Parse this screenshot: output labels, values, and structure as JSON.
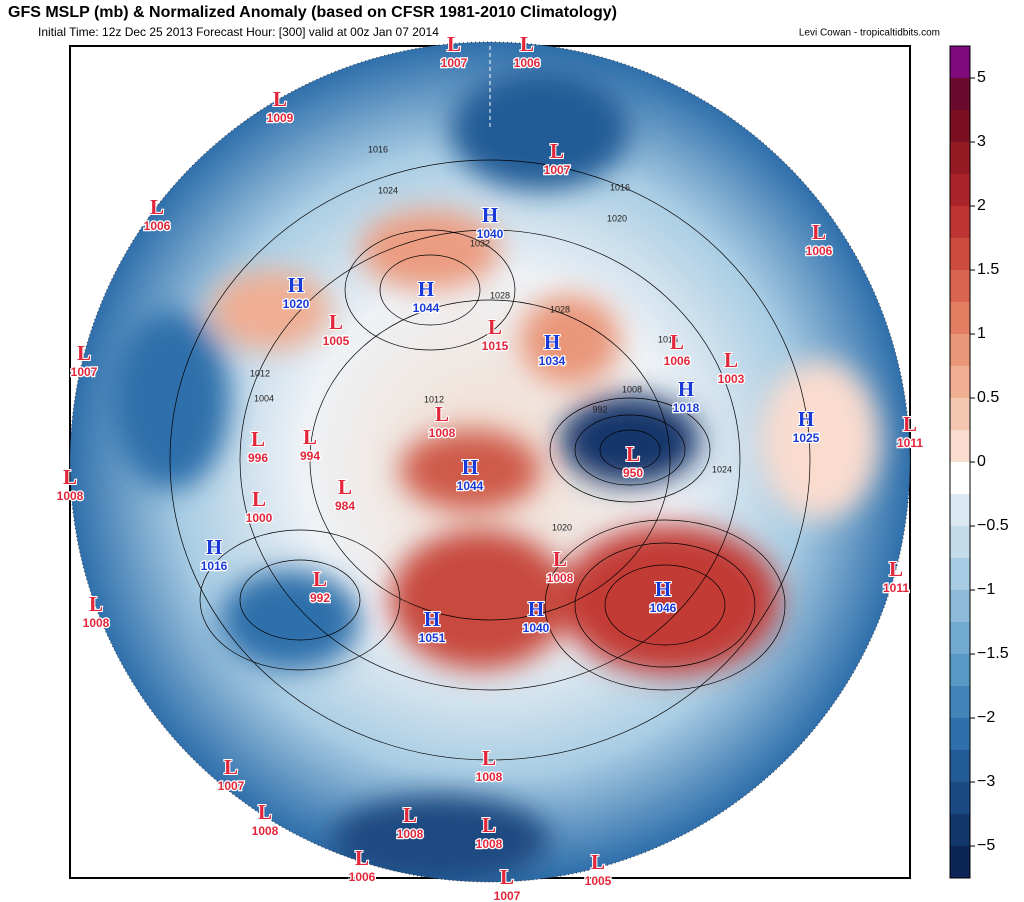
{
  "header": {
    "title": "GFS MSLP (mb) & Normalized Anomaly (based on CFSR 1981-2010 Climatology)",
    "subtitle": "Initial Time: 12z Dec 25 2013 Forecast Hour: [300] valid at 00z Jan 07 2014",
    "credit": "Levi Cowan - tropicaltidbits.com"
  },
  "colorbar": {
    "ticks": [
      "5",
      "3",
      "2",
      "1.5",
      "1",
      "0.5",
      "0",
      "−0.5",
      "−1",
      "−1.5",
      "−2",
      "−3",
      "−5"
    ],
    "colors": [
      "#7e0a7e",
      "#6a0a2e",
      "#7d1020",
      "#941a24",
      "#a9232a",
      "#bd3432",
      "#cc4a3e",
      "#d9644f",
      "#e27d62",
      "#ea9679",
      "#f0ae93",
      "#f5c6b0",
      "#fadccf",
      "#ffffff",
      "#dbe9f2",
      "#c3dceb",
      "#a8cce3",
      "#8dbbd9",
      "#72a9cf",
      "#5997c4",
      "#4283b8",
      "#2f6fab",
      "#235b96",
      "#1a4880",
      "#12356a",
      "#0b2355"
    ]
  },
  "centers": [
    {
      "kind": "L",
      "value": "1007"
    },
    {
      "kind": "L",
      "value": "1006"
    },
    {
      "kind": "L",
      "value": "1009"
    },
    {
      "kind": "L",
      "value": "1007"
    },
    {
      "kind": "H",
      "value": "1040"
    },
    {
      "kind": "L",
      "value": "1006"
    },
    {
      "kind": "L",
      "value": "1006"
    },
    {
      "kind": "H",
      "value": "1020"
    },
    {
      "kind": "H",
      "value": "1044"
    },
    {
      "kind": "L",
      "value": "1005"
    },
    {
      "kind": "L",
      "value": "1015"
    },
    {
      "kind": "H",
      "value": "1034"
    },
    {
      "kind": "L",
      "value": "1006"
    },
    {
      "kind": "L",
      "value": "1003"
    },
    {
      "kind": "L",
      "value": "1007"
    },
    {
      "kind": "H",
      "value": "1018"
    },
    {
      "kind": "H",
      "value": "1025"
    },
    {
      "kind": "L",
      "value": "1011"
    },
    {
      "kind": "L",
      "value": "1008"
    },
    {
      "kind": "L",
      "value": "996"
    },
    {
      "kind": "L",
      "value": "994"
    },
    {
      "kind": "L",
      "value": "950"
    },
    {
      "kind": "H",
      "value": "1044"
    },
    {
      "kind": "L",
      "value": "1008"
    },
    {
      "kind": "L",
      "value": "984"
    },
    {
      "kind": "L",
      "value": "1000"
    },
    {
      "kind": "H",
      "value": "1016"
    },
    {
      "kind": "L",
      "value": "1008"
    },
    {
      "kind": "L",
      "value": "1011"
    },
    {
      "kind": "L",
      "value": "992"
    },
    {
      "kind": "H",
      "value": "1046"
    },
    {
      "kind": "L",
      "value": "1008"
    },
    {
      "kind": "H",
      "value": "1051"
    },
    {
      "kind": "H",
      "value": "1040"
    },
    {
      "kind": "L",
      "value": "1007"
    },
    {
      "kind": "L",
      "value": "1008"
    },
    {
      "kind": "L",
      "value": "1008"
    },
    {
      "kind": "L",
      "value": "1008"
    },
    {
      "kind": "L",
      "value": "1008"
    },
    {
      "kind": "L",
      "value": "1006"
    },
    {
      "kind": "L",
      "value": "1007"
    },
    {
      "kind": "L",
      "value": "1005"
    }
  ],
  "isobar_labels": [
    "1016",
    "1024",
    "1020",
    "1032",
    "1028",
    "1012",
    "1004",
    "1008",
    "992",
    "1024",
    "1016",
    "1012",
    "1016",
    "1020",
    "1028"
  ]
}
